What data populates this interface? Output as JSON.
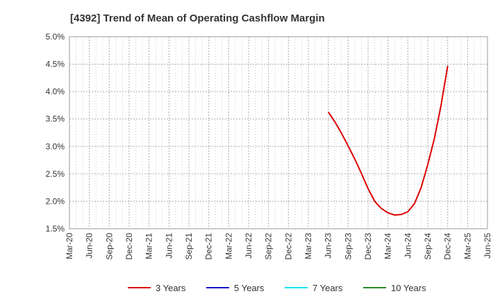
{
  "chart_data": {
    "type": "line",
    "title": "[4392]  Trend of Mean of Operating Cashflow Margin",
    "xlabel": "",
    "ylabel": "",
    "x_ticks": [
      "Mar-20",
      "Jun-20",
      "Sep-20",
      "Dec-20",
      "Mar-21",
      "Jun-21",
      "Sep-21",
      "Dec-21",
      "Mar-22",
      "Jun-22",
      "Sep-22",
      "Dec-22",
      "Mar-23",
      "Jun-23",
      "Sep-23",
      "Dec-23",
      "Mar-24",
      "Jun-24",
      "Sep-24",
      "Dec-24",
      "Mar-25",
      "Jun-25"
    ],
    "y_ticks": [
      "1.5%",
      "2.0%",
      "2.5%",
      "3.0%",
      "3.5%",
      "4.0%",
      "4.5%",
      "5.0%"
    ],
    "ylim": [
      1.5,
      5.0
    ],
    "y_unit": "%",
    "grid": true,
    "legend_position": "bottom",
    "series": [
      {
        "name": "3 Years",
        "color": "#dd0000",
        "x": [
          "Jun-23",
          "Jul-23",
          "Aug-23",
          "Sep-23",
          "Oct-23",
          "Nov-23",
          "Dec-23",
          "Jan-24",
          "Feb-24",
          "Mar-24",
          "Apr-24",
          "May-24",
          "Jun-24",
          "Jul-24",
          "Aug-24",
          "Sep-24",
          "Oct-24",
          "Nov-24",
          "Dec-24"
        ],
        "values": [
          3.63,
          3.45,
          3.24,
          3.01,
          2.77,
          2.51,
          2.23,
          2.0,
          1.87,
          1.79,
          1.75,
          1.76,
          1.81,
          1.96,
          2.25,
          2.67,
          3.15,
          3.75,
          4.47
        ]
      },
      {
        "name": "5 Years",
        "color": "#0000cc",
        "x": [],
        "values": []
      },
      {
        "name": "7 Years",
        "color": "#00e5ee",
        "x": [],
        "values": []
      },
      {
        "name": "10 Years",
        "color": "#228b22",
        "x": [],
        "values": []
      }
    ]
  }
}
